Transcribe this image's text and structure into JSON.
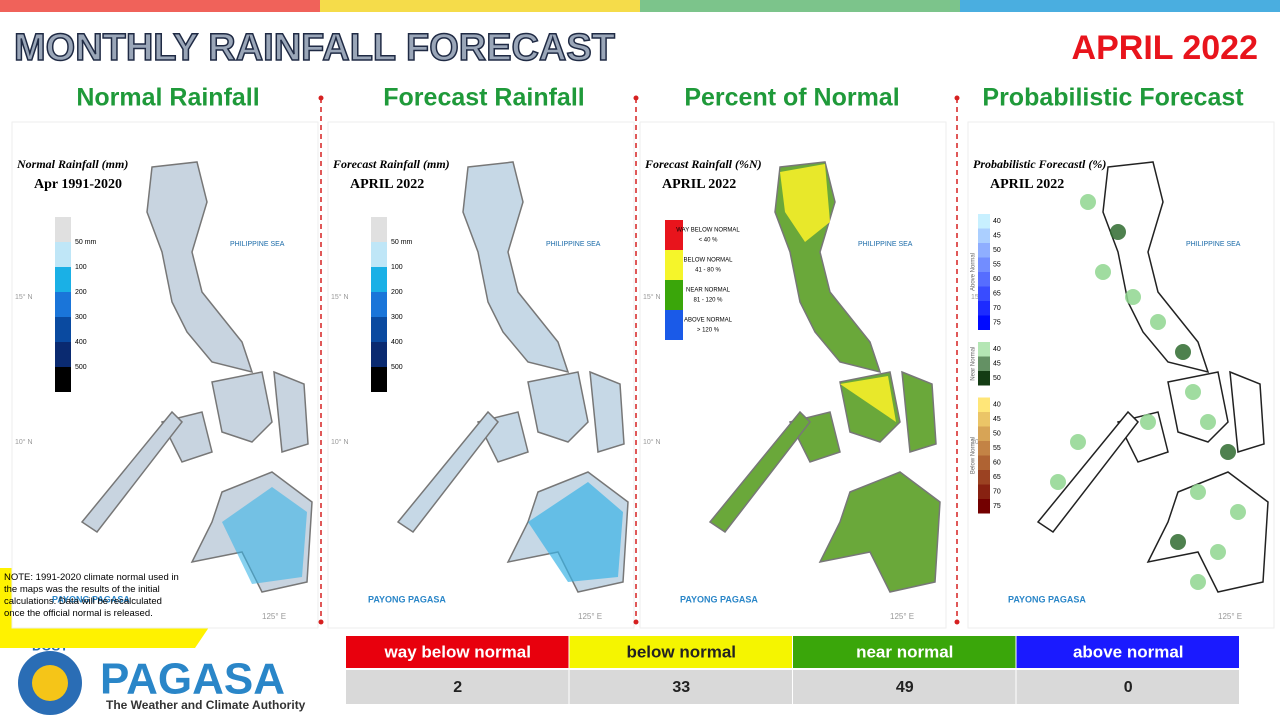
{
  "header": {
    "title": "MONTHLY RAINFALL FORECAST",
    "period": "APRIL 2022"
  },
  "panels": [
    {
      "title": "Normal Rainfall",
      "map_title": "Normal Rainfall (mm)",
      "map_subtitle": "Apr 1991-2020",
      "scale": [
        "50 mm",
        "100",
        "200",
        "300",
        "400",
        "500"
      ]
    },
    {
      "title": "Forecast Rainfall",
      "map_title": "Forecast Rainfall (mm)",
      "map_subtitle": "APRIL 2022",
      "scale": [
        "50 mm",
        "100",
        "200",
        "300",
        "400",
        "500"
      ]
    },
    {
      "title": "Percent of Normal",
      "map_title": "Forecast Rainfall (%N)",
      "map_subtitle": "APRIL 2022",
      "classes": [
        {
          "label": "WAY BELOW NORMAL",
          "range": "< 40 %"
        },
        {
          "label": "BELOW NORMAL",
          "range": "41 - 80 %"
        },
        {
          "label": "NEAR NORMAL",
          "range": "81 - 120 %"
        },
        {
          "label": "ABOVE NORMAL",
          "range": "> 120 %"
        }
      ]
    },
    {
      "title": "Probabilistic Forecast",
      "map_title": "Probabilistic Forecastl (%)",
      "map_subtitle": "APRIL 2022",
      "groups": [
        {
          "name": "Above Normal",
          "levels": [
            40,
            45,
            50,
            55,
            60,
            65,
            70,
            75
          ]
        },
        {
          "name": "Near Normal",
          "levels": [
            40,
            45,
            50
          ]
        },
        {
          "name": "Below Normal",
          "levels": [
            40,
            45,
            50,
            55,
            60,
            65,
            70,
            75
          ]
        }
      ]
    }
  ],
  "map_labels": {
    "sea": "PHILIPPINE SEA",
    "lat": [
      "15° N",
      "10° N"
    ],
    "lon": "125° E",
    "logo": "PAYONG PAGASA"
  },
  "note": "NOTE: 1991-2020 climate normal used in the maps was the results of the initial calculations. Data will be recalculated once the official normal is released.",
  "logo": {
    "agency": "DOST",
    "name": "PAGASA",
    "tagline": "The Weather and Climate Authority"
  },
  "summary_table": {
    "headers": [
      "way below normal",
      "below normal",
      "near normal",
      "above normal"
    ],
    "rows": [
      [
        "2",
        "33",
        "49",
        "0"
      ]
    ]
  }
}
